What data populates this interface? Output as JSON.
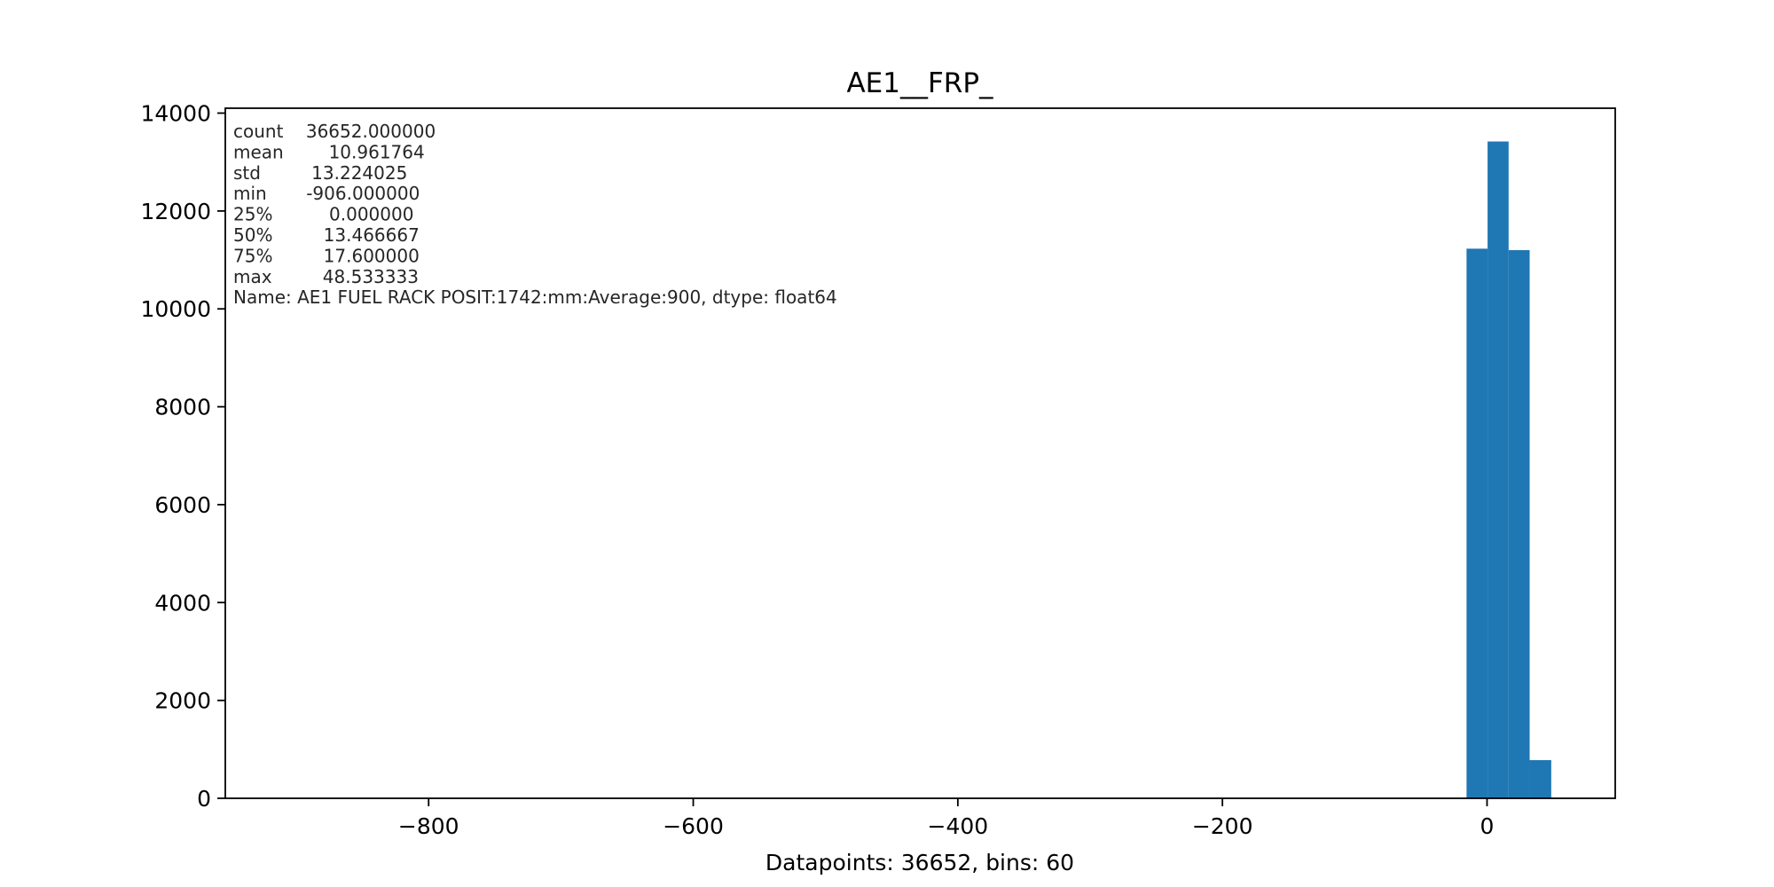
{
  "chart_data": {
    "type": "bar",
    "title": "AE1__FRP_",
    "xlabel": "Datapoints: 36652, bins: 60",
    "ylabel": "",
    "xlim": [
      -953.7,
      96.9
    ],
    "ylim": [
      0,
      14100
    ],
    "grid": false,
    "bar_color": "#1f77b4",
    "xticks": [
      -800,
      -600,
      -400,
      -200,
      0
    ],
    "xtick_labels": [
      "−800",
      "−600",
      "−400",
      "−200",
      "0"
    ],
    "yticks": [
      0,
      2000,
      4000,
      6000,
      8000,
      10000,
      12000,
      14000
    ],
    "ytick_labels": [
      "0",
      "2000",
      "4000",
      "6000",
      "8000",
      "10000",
      "12000",
      "14000"
    ],
    "bars": [
      {
        "x0": -15.48,
        "x1": 0.42,
        "value": 11230
      },
      {
        "x0": 0.42,
        "x1": 16.32,
        "value": 13420
      },
      {
        "x0": 16.32,
        "x1": 32.22,
        "value": 11200
      },
      {
        "x0": 32.22,
        "x1": 48.53,
        "value": 780
      }
    ],
    "annotations": [
      "count    36652.000000",
      "mean        10.961764",
      "std         13.224025",
      "min       -906.000000",
      "25%          0.000000",
      "50%         13.466667",
      "75%         17.600000",
      "max         48.533333",
      "Name: AE1 FUEL RACK POSIT:1742:mm:Average:900, dtype: float64"
    ]
  }
}
